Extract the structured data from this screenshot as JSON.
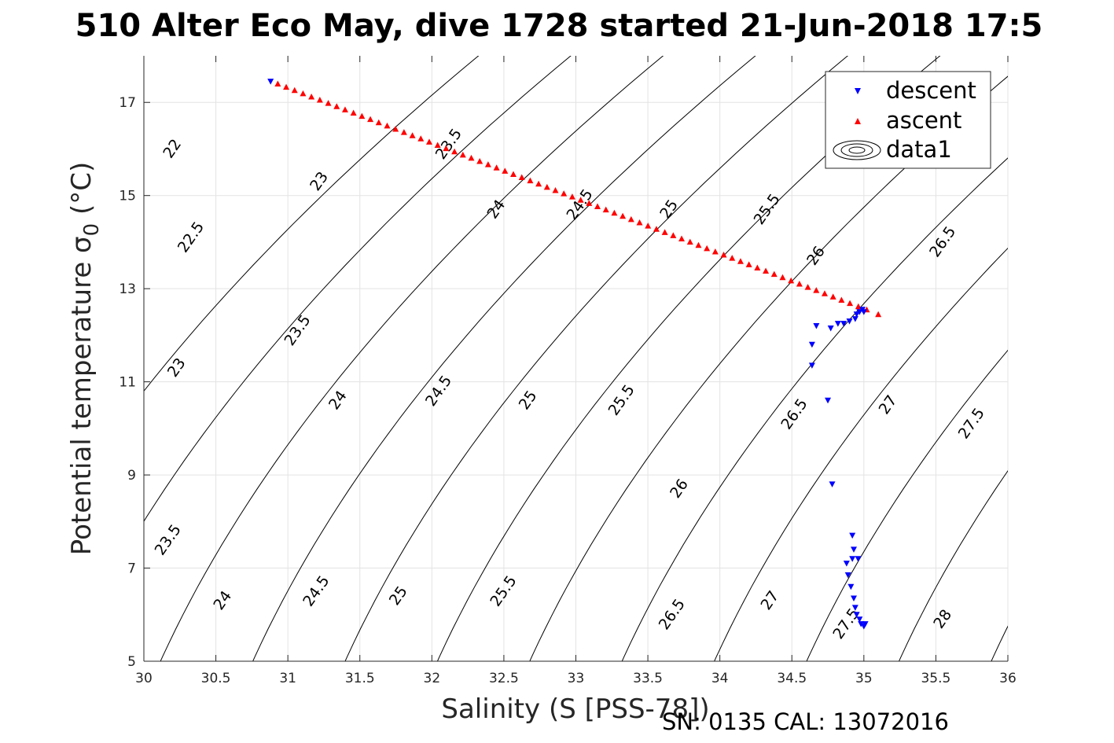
{
  "chart_data": {
    "type": "scatter",
    "title": "510 Alter Eco May, dive 1728 started 21-Jun-2018 17:5",
    "xlabel": "Salinity (S [PSS-78])",
    "ylabel": "Potential temperature σ",
    "ylabel_subscript": "0",
    "ylabel_unit": " (°C)",
    "xlim": [
      30,
      36
    ],
    "ylim": [
      5,
      18
    ],
    "xticks": [
      30,
      30.5,
      31,
      31.5,
      32,
      32.5,
      33,
      33.5,
      34,
      34.5,
      35,
      35.5,
      36
    ],
    "xtick_labels": [
      "30",
      "30.5",
      "31",
      "31.5",
      "32",
      "32.5",
      "33",
      "33.5",
      "34",
      "34.5",
      "35",
      "35.5",
      "36"
    ],
    "yticks": [
      5,
      7,
      9,
      11,
      13,
      15,
      17
    ],
    "ytick_labels": [
      "5",
      "7",
      "9",
      "11",
      "13",
      "15",
      "17"
    ],
    "grid": true,
    "legend_position": "top-right",
    "contour_levels": [
      22,
      22.5,
      23,
      23.5,
      24,
      24.5,
      25,
      25.5,
      26,
      26.5,
      27,
      27.5,
      28
    ],
    "contour_labels": [
      {
        "text": "22",
        "x": 30.2,
        "y": 16.0
      },
      {
        "text": "22.5",
        "x": 30.33,
        "y": 14.1
      },
      {
        "text": "23",
        "x": 30.23,
        "y": 11.3
      },
      {
        "text": "23.5",
        "x": 30.17,
        "y": 7.6
      },
      {
        "text": "23",
        "x": 31.22,
        "y": 15.3
      },
      {
        "text": "23.5",
        "x": 31.07,
        "y": 12.1
      },
      {
        "text": "24",
        "x": 30.55,
        "y": 6.3
      },
      {
        "text": "23.5",
        "x": 32.12,
        "y": 16.1
      },
      {
        "text": "24",
        "x": 31.35,
        "y": 10.6
      },
      {
        "text": "24.5",
        "x": 31.2,
        "y": 6.5
      },
      {
        "text": "24",
        "x": 32.45,
        "y": 14.7
      },
      {
        "text": "24.5",
        "x": 32.05,
        "y": 10.8
      },
      {
        "text": "25",
        "x": 31.77,
        "y": 6.4
      },
      {
        "text": "24.5",
        "x": 33.03,
        "y": 14.8
      },
      {
        "text": "25",
        "x": 32.67,
        "y": 10.6
      },
      {
        "text": "25.5",
        "x": 32.5,
        "y": 6.5
      },
      {
        "text": "25",
        "x": 33.65,
        "y": 14.7
      },
      {
        "text": "25.5",
        "x": 33.32,
        "y": 10.6
      },
      {
        "text": "26",
        "x": 33.72,
        "y": 8.7
      },
      {
        "text": "26.5",
        "x": 33.67,
        "y": 6.0
      },
      {
        "text": "25.5",
        "x": 34.33,
        "y": 14.7
      },
      {
        "text": "26",
        "x": 34.67,
        "y": 13.7
      },
      {
        "text": "26.5",
        "x": 34.52,
        "y": 10.3
      },
      {
        "text": "27",
        "x": 34.35,
        "y": 6.3
      },
      {
        "text": "27.5",
        "x": 34.88,
        "y": 5.8
      },
      {
        "text": "27",
        "x": 35.17,
        "y": 10.5
      },
      {
        "text": "26.5",
        "x": 35.55,
        "y": 14.0
      },
      {
        "text": "27.5",
        "x": 35.75,
        "y": 10.1
      },
      {
        "text": "28",
        "x": 35.55,
        "y": 5.9
      }
    ],
    "series": [
      {
        "name": "descent",
        "color": "#0000ff",
        "marker": "triangle-down",
        "x": [
          30.88,
          34.67,
          34.64,
          34.64,
          34.75,
          34.77,
          34.82,
          34.86,
          34.9,
          34.94,
          34.95,
          34.97,
          34.99,
          35.0,
          34.78,
          34.92,
          34.93,
          34.92,
          34.96,
          34.88,
          34.89,
          34.91,
          34.93,
          34.94,
          34.95,
          34.97,
          34.98,
          35.0,
          35.01
        ],
        "y": [
          17.45,
          12.2,
          11.8,
          11.35,
          10.6,
          12.15,
          12.25,
          12.25,
          12.3,
          12.35,
          12.45,
          12.5,
          12.55,
          12.5,
          8.8,
          7.7,
          7.4,
          7.2,
          7.2,
          7.1,
          6.85,
          6.6,
          6.35,
          6.15,
          6.0,
          5.9,
          5.8,
          5.75,
          5.8
        ]
      },
      {
        "name": "ascent",
        "color": "#ff0000",
        "marker": "triangle-up",
        "x_start": 30.93,
        "y_start": 17.4,
        "x_end": 35.02,
        "y_end": 12.55,
        "count": 71,
        "x_extra": [
          35.1
        ],
        "y_extra": [
          12.45
        ]
      },
      {
        "name": "data1",
        "marker": "contour-icon"
      }
    ],
    "annotation": "SN: 0135  CAL: 13072016"
  }
}
